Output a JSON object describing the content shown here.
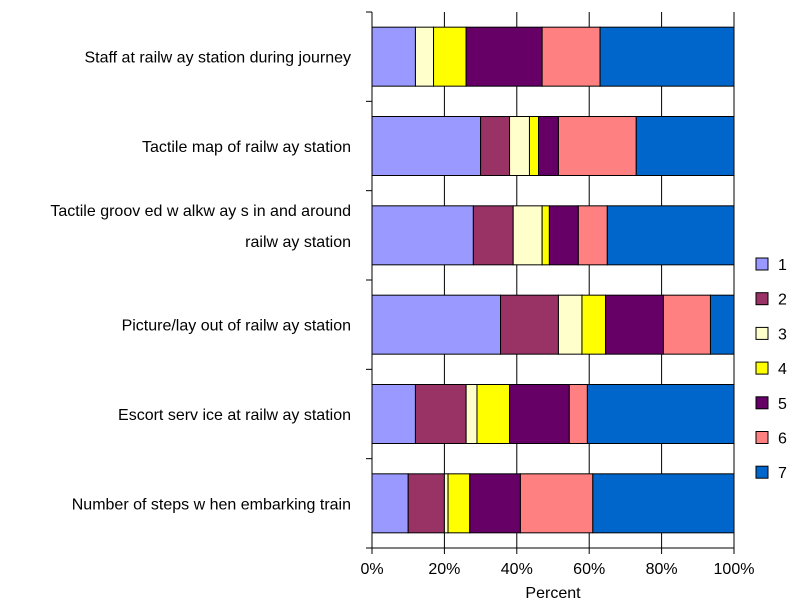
{
  "chart_data": {
    "type": "bar",
    "orientation": "horizontal",
    "stacked": true,
    "percent_stacked": true,
    "categories": [
      "Staff at railway station during journey",
      "Tactile map of railway station",
      "Tactile grooved walkways in and around railway station",
      "Picture/layout of railway station",
      "Escort service at railway station",
      "Number of steps when embarking train"
    ],
    "category_lines": [
      [
        "Staff at railw ay  station during journey"
      ],
      [
        "Tactile map of railw ay  station"
      ],
      [
        "Tactile groov ed w alkw ay s in and around",
        "railw ay  station"
      ],
      [
        "Picture/lay out of railw ay  station"
      ],
      [
        "Escort serv ice at railw ay  station"
      ],
      [
        "Number of steps w hen embarking train"
      ]
    ],
    "series": [
      {
        "name": "1",
        "color": "#9999ff",
        "values": [
          12,
          30,
          28,
          35.5,
          12,
          10
        ]
      },
      {
        "name": "2",
        "color": "#993366",
        "values": [
          0,
          8,
          11,
          16,
          14,
          10
        ]
      },
      {
        "name": "3",
        "color": "#ffffcc",
        "values": [
          5,
          5.5,
          8,
          6.5,
          3,
          1
        ]
      },
      {
        "name": "4",
        "color": "#ffff00",
        "values": [
          9,
          2.5,
          2,
          6.5,
          9,
          6
        ]
      },
      {
        "name": "5",
        "color": "#660066",
        "values": [
          21,
          5.5,
          8,
          16,
          16.5,
          14
        ]
      },
      {
        "name": "6",
        "color": "#ff8080",
        "values": [
          16,
          21.5,
          8,
          13,
          5,
          20
        ]
      },
      {
        "name": "7",
        "color": "#0066cc",
        "values": [
          37,
          27,
          35,
          6.5,
          40.5,
          39
        ]
      }
    ],
    "x_ticks": [
      "0%",
      "20%",
      "40%",
      "60%",
      "80%",
      "100%"
    ],
    "xlim": [
      0,
      100
    ],
    "xlabel": "Percent",
    "ylabel": "",
    "title": "",
    "grid": "vertical",
    "legend_position": "right"
  }
}
